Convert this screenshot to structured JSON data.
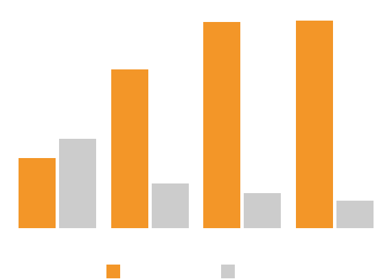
{
  "chart_data": {
    "type": "bar",
    "categories": [
      "",
      "",
      "",
      ""
    ],
    "series": [
      {
        "values": [
          102,
          231,
          300,
          302
        ]
      },
      {
        "values": [
          130,
          65,
          51,
          40
        ]
      }
    ],
    "ylim": [
      0,
      310
    ],
    "grid": false,
    "legend_position": "bottom",
    "colors": [
      "#f39628",
      "#cccccc"
    ]
  }
}
